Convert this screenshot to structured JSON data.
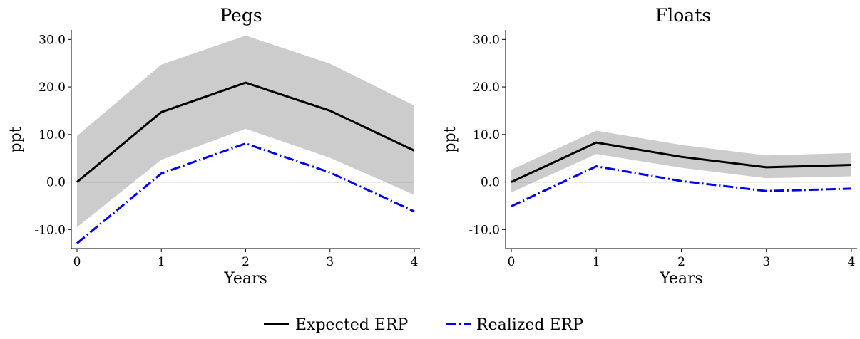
{
  "chart_data": [
    {
      "type": "line",
      "title": "Pegs",
      "xlabel": "Years",
      "ylabel": "ppt",
      "x": [
        0,
        1,
        2,
        3,
        4
      ],
      "xticks": [
        "0",
        "1",
        "2",
        "3",
        "4"
      ],
      "yticks": [
        "30.0",
        "20.0",
        "10.0",
        "0.0",
        "-10.0"
      ],
      "ylim": [
        -14,
        32
      ],
      "series": [
        {
          "name": "Expected ERP",
          "values": [
            0.0,
            14.7,
            20.9,
            15.0,
            6.6
          ],
          "color": "#000000",
          "style": "solid"
        },
        {
          "name": "Realized ERP",
          "values": [
            -12.9,
            1.8,
            8.1,
            2.0,
            -6.2
          ],
          "color": "#0000ee",
          "style": "dash-dot"
        }
      ],
      "band": {
        "lower": [
          -9.5,
          4.7,
          11.2,
          5.1,
          -2.7
        ],
        "upper": [
          9.7,
          24.7,
          30.8,
          24.9,
          16.1
        ],
        "color": "#cccccc"
      }
    },
    {
      "type": "line",
      "title": "Floats",
      "xlabel": "Years",
      "ylabel": "ppt",
      "x": [
        0,
        1,
        2,
        3,
        4
      ],
      "xticks": [
        "0",
        "1",
        "2",
        "3",
        "4"
      ],
      "yticks": [
        "30.0",
        "20.0",
        "10.0",
        "0.0",
        "-10.0"
      ],
      "ylim": [
        -14,
        32
      ],
      "series": [
        {
          "name": "Expected ERP",
          "values": [
            0.0,
            8.3,
            5.3,
            3.1,
            3.6
          ],
          "color": "#000000",
          "style": "solid"
        },
        {
          "name": "Realized ERP",
          "values": [
            -5.1,
            3.3,
            0.2,
            -1.9,
            -1.4
          ],
          "color": "#0000ee",
          "style": "dash-dot"
        }
      ],
      "band": {
        "lower": [
          -2.2,
          5.9,
          3.0,
          0.8,
          1.2
        ],
        "upper": [
          2.6,
          10.8,
          7.8,
          5.6,
          6.1
        ],
        "color": "#cccccc"
      }
    }
  ],
  "legend": [
    {
      "label": "Expected ERP",
      "color": "#000000",
      "style": "solid"
    },
    {
      "label": "Realized ERP",
      "color": "#0000ee",
      "style": "dash-dot"
    }
  ]
}
